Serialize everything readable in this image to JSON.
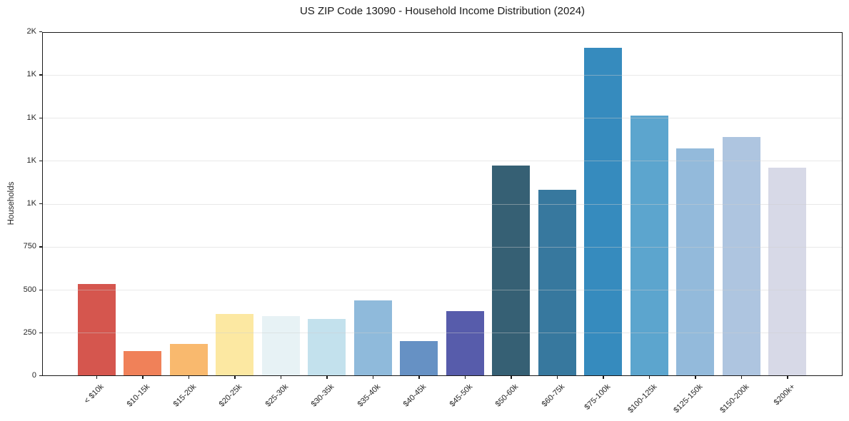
{
  "chart_data": {
    "type": "bar",
    "title": "US ZIP Code 13090 - Household Income Distribution (2024)",
    "xlabel": "",
    "ylabel": "Households",
    "ylim": [
      0,
      2000
    ],
    "grid": true,
    "legend": false,
    "categories": [
      "< $10k",
      "$10-15k",
      "$15-20k",
      "$20-25k",
      "$25-30k",
      "$30-35k",
      "$35-40k",
      "$40-45k",
      "$45-50k",
      "$50-60k",
      "$60-75k",
      "$75-100k",
      "$100-125k",
      "$125-150k",
      "$150-200k",
      "$200k+"
    ],
    "values": [
      530,
      140,
      184,
      358,
      345,
      327,
      435,
      200,
      373,
      1219,
      1078,
      1903,
      1512,
      1320,
      1385,
      1207
    ],
    "bar_colors": [
      "#d5564e",
      "#f08159",
      "#f9b96e",
      "#fce8a2",
      "#e7f2f5",
      "#c3e1ed",
      "#8fbadb",
      "#6691c4",
      "#575cab",
      "#366074",
      "#37789e",
      "#368bbe",
      "#5ca5ce",
      "#93badb",
      "#aec5e0",
      "#d7d9e7"
    ],
    "y_ticks": [
      {
        "value": 0,
        "label": "0"
      },
      {
        "value": 250,
        "label": "250"
      },
      {
        "value": 500,
        "label": "500"
      },
      {
        "value": 750,
        "label": "750"
      },
      {
        "value": 1000,
        "label": "1K"
      },
      {
        "value": 1250,
        "label": "1K"
      },
      {
        "value": 1500,
        "label": "1K"
      },
      {
        "value": 1750,
        "label": "1K"
      },
      {
        "value": 2000,
        "label": "2K"
      }
    ]
  },
  "colors": {
    "background": "#ffffff",
    "spine": "#1a1a1a",
    "grid": "#e6e6e6",
    "tick_text": "#262626"
  }
}
